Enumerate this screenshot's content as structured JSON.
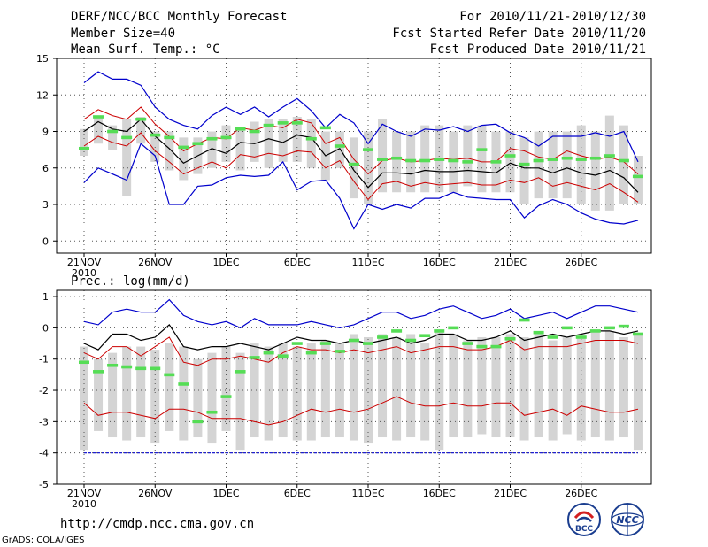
{
  "header": {
    "left1": "DERF/NCC/BCC Monthly Forecast",
    "left2": "Member Size=40",
    "left3": "Mean Surf. Temp.: °C",
    "right1": "For 2010/11/21-2010/12/30",
    "right2": "Fcst Started Refer Date 2010/11/20",
    "right3": "Fcst Produced Date 2010/11/21"
  },
  "footer": {
    "url": "http://cmdp.ncc.cma.gov.cn",
    "credit": "GrADS: COLA/IGES",
    "logo1": "BCC",
    "logo2": "NCC"
  },
  "colors": {
    "ensemble_mean": "#000000",
    "std_band": "#cc0000",
    "minmax": "#0000cc",
    "obs_marker": "#55dd55",
    "box": "#d4d4d4"
  },
  "chart_data": [
    {
      "type": "box-ensemble",
      "title": "Mean Surf. Temp.: °C",
      "xlabel": "",
      "ylabel": "",
      "x_tick_labels": [
        "21NOV",
        "26NOV",
        "1DEC",
        "6DEC",
        "11DEC",
        "16DEC",
        "21DEC",
        "26DEC"
      ],
      "x_tick_sublabel": "2010",
      "ylim": [
        -1,
        15
      ],
      "y_ticks": [
        0,
        3,
        6,
        9,
        12,
        15
      ],
      "days": 40,
      "series": [
        {
          "name": "max",
          "values": [
            13.0,
            13.9,
            13.3,
            13.3,
            12.8,
            11.0,
            10.0,
            9.5,
            9.2,
            10.3,
            11.0,
            10.4,
            11.0,
            10.2,
            11.0,
            11.7,
            10.7,
            9.3,
            10.4,
            9.7,
            8.0,
            9.6,
            9.0,
            8.6,
            9.2,
            9.1,
            9.4,
            9.0,
            9.5,
            9.6,
            8.9,
            8.5,
            7.8,
            8.6,
            8.6,
            8.6,
            8.9,
            8.6,
            9.0,
            6.5
          ]
        },
        {
          "name": "mean_plus_std",
          "values": [
            10.0,
            10.8,
            10.3,
            10.0,
            11.0,
            9.6,
            8.6,
            7.4,
            8.0,
            8.5,
            8.4,
            9.3,
            9.1,
            9.5,
            9.3,
            10.0,
            9.7,
            8.0,
            8.5,
            6.7,
            5.5,
            6.6,
            6.8,
            6.5,
            6.6,
            6.8,
            6.7,
            6.8,
            6.5,
            6.5,
            7.6,
            7.4,
            6.9,
            6.7,
            7.4,
            7.0,
            6.7,
            6.9,
            6.5,
            5.5
          ]
        },
        {
          "name": "mean",
          "values": [
            9.0,
            9.8,
            9.2,
            9.0,
            10.0,
            8.6,
            7.6,
            6.4,
            7.0,
            7.6,
            7.2,
            8.1,
            8.0,
            8.4,
            8.1,
            8.7,
            8.5,
            7.0,
            7.6,
            5.8,
            4.4,
            5.6,
            5.6,
            5.5,
            5.8,
            5.7,
            5.7,
            5.8,
            5.7,
            5.6,
            6.4,
            6.0,
            6.0,
            5.6,
            6.0,
            5.6,
            5.4,
            5.8,
            5.2,
            4.0
          ]
        },
        {
          "name": "mean_minus_std",
          "values": [
            7.8,
            8.6,
            8.1,
            7.8,
            8.9,
            7.4,
            6.5,
            5.5,
            6.0,
            6.5,
            6.0,
            7.1,
            6.9,
            7.2,
            7.0,
            7.4,
            7.3,
            6.0,
            6.6,
            4.9,
            3.4,
            4.7,
            4.9,
            4.5,
            4.8,
            4.6,
            4.7,
            4.8,
            4.6,
            4.6,
            5.0,
            4.8,
            5.2,
            4.5,
            4.8,
            4.5,
            4.2,
            4.7,
            4.0,
            3.2
          ]
        },
        {
          "name": "min",
          "values": [
            4.8,
            6.0,
            5.5,
            5.0,
            8.0,
            7.0,
            3.0,
            3.0,
            4.5,
            4.6,
            5.2,
            5.4,
            5.3,
            5.4,
            6.5,
            4.2,
            4.9,
            5.0,
            3.5,
            1.0,
            3.0,
            2.6,
            3.0,
            2.7,
            3.5,
            3.5,
            4.0,
            3.6,
            3.5,
            3.4,
            3.4,
            1.9,
            2.9,
            3.4,
            3.0,
            2.3,
            1.8,
            1.5,
            1.4,
            1.7
          ]
        },
        {
          "name": "box_top",
          "values": [
            9.2,
            10.2,
            9.5,
            10.0,
            10.2,
            9.0,
            9.0,
            8.5,
            8.5,
            9.0,
            9.5,
            9.2,
            9.8,
            10.0,
            10.0,
            10.2,
            10.0,
            9.0,
            9.0,
            8.5,
            9.0,
            10.0,
            9.0,
            9.0,
            9.5,
            9.5,
            9.0,
            9.5,
            9.5,
            9.0,
            9.0,
            8.5,
            9.0,
            9.0,
            9.0,
            9.5,
            9.0,
            10.3,
            9.5,
            7.0
          ]
        },
        {
          "name": "box_bottom",
          "values": [
            7.0,
            8.0,
            7.5,
            3.7,
            8.0,
            6.5,
            5.8,
            5.0,
            5.5,
            6.0,
            6.5,
            5.8,
            6.5,
            6.0,
            6.5,
            6.5,
            6.0,
            5.0,
            6.0,
            3.5,
            3.0,
            4.0,
            4.0,
            4.0,
            4.0,
            4.0,
            4.0,
            4.5,
            4.0,
            4.0,
            4.0,
            3.0,
            3.5,
            3.5,
            3.5,
            3.0,
            2.5,
            2.5,
            3.0,
            3.0
          ]
        },
        {
          "name": "observed",
          "values": [
            7.6,
            10.2,
            9.0,
            8.5,
            10.0,
            8.7,
            8.5,
            7.7,
            8.0,
            8.4,
            8.5,
            9.2,
            9.0,
            9.5,
            9.7,
            9.7,
            8.4,
            9.3,
            7.8,
            6.3,
            7.5,
            6.7,
            6.8,
            6.6,
            6.6,
            6.7,
            6.6,
            6.5,
            7.5,
            6.5,
            7.0,
            6.3,
            6.6,
            6.7,
            6.8,
            6.7,
            6.8,
            7.0,
            6.6,
            5.3
          ]
        }
      ]
    },
    {
      "type": "box-ensemble",
      "title": "Prec.: log(mm/d)",
      "xlabel": "",
      "ylabel": "",
      "x_tick_labels": [
        "21NOV",
        "26NOV",
        "1DEC",
        "6DEC",
        "11DEC",
        "16DEC",
        "21DEC",
        "26DEC"
      ],
      "x_tick_sublabel": "2010",
      "ylim": [
        -5,
        1.2
      ],
      "y_ticks": [
        -5,
        -4,
        -3,
        -2,
        -1,
        0,
        1
      ],
      "days": 40,
      "series": [
        {
          "name": "max",
          "values": [
            0.2,
            0.1,
            0.5,
            0.6,
            0.5,
            0.5,
            0.9,
            0.4,
            0.2,
            0.1,
            0.2,
            0.0,
            0.3,
            0.1,
            0.1,
            0.1,
            0.2,
            0.1,
            0.0,
            0.1,
            0.3,
            0.5,
            0.5,
            0.3,
            0.4,
            0.6,
            0.7,
            0.5,
            0.3,
            0.4,
            0.6,
            0.3,
            0.4,
            0.5,
            0.3,
            0.5,
            0.7,
            0.7,
            0.6,
            0.5
          ]
        },
        {
          "name": "mean",
          "values": [
            -0.5,
            -0.7,
            -0.2,
            -0.2,
            -0.4,
            -0.3,
            0.1,
            -0.6,
            -0.7,
            -0.6,
            -0.6,
            -0.5,
            -0.6,
            -0.7,
            -0.5,
            -0.3,
            -0.4,
            -0.4,
            -0.5,
            -0.4,
            -0.5,
            -0.4,
            -0.3,
            -0.5,
            -0.4,
            -0.2,
            -0.2,
            -0.4,
            -0.4,
            -0.3,
            -0.1,
            -0.4,
            -0.3,
            -0.2,
            -0.3,
            -0.2,
            -0.1,
            -0.1,
            -0.2,
            -0.1
          ]
        },
        {
          "name": "mean_minus_std",
          "values": [
            -0.8,
            -1.0,
            -0.6,
            -0.6,
            -0.9,
            -0.6,
            -0.3,
            -1.1,
            -1.2,
            -1.0,
            -1.0,
            -0.9,
            -1.0,
            -1.1,
            -0.8,
            -0.6,
            -0.7,
            -0.7,
            -0.8,
            -0.7,
            -0.8,
            -0.7,
            -0.6,
            -0.8,
            -0.7,
            -0.6,
            -0.6,
            -0.7,
            -0.7,
            -0.6,
            -0.4,
            -0.7,
            -0.6,
            -0.6,
            -0.6,
            -0.5,
            -0.4,
            -0.4,
            -0.4,
            -0.5
          ]
        },
        {
          "name": "low",
          "values": [
            -2.4,
            -2.8,
            -2.7,
            -2.7,
            -2.8,
            -2.9,
            -2.6,
            -2.6,
            -2.7,
            -2.9,
            -2.9,
            -2.9,
            -3.0,
            -3.1,
            -3.0,
            -2.8,
            -2.6,
            -2.7,
            -2.6,
            -2.7,
            -2.6,
            -2.4,
            -2.2,
            -2.4,
            -2.5,
            -2.5,
            -2.4,
            -2.5,
            -2.5,
            -2.4,
            -2.4,
            -2.8,
            -2.7,
            -2.6,
            -2.8,
            -2.5,
            -2.6,
            -2.7,
            -2.7,
            -2.6
          ]
        },
        {
          "name": "min",
          "values": [
            -4.0,
            -4.0,
            -4.0,
            -4.0,
            -4.0,
            -4.0,
            -4.0,
            -4.0,
            -4.0,
            -4.0,
            -4.0,
            -4.0,
            -4.0,
            -4.0,
            -4.0,
            -4.0,
            -4.0,
            -4.0,
            -4.0,
            -4.0,
            -4.0,
            -4.0,
            -4.0,
            -4.0,
            -4.0,
            -4.0,
            -4.0,
            -4.0,
            -4.0,
            -4.0,
            -4.0,
            -4.0,
            -4.0,
            -4.0,
            -4.0,
            -4.0,
            -4.0,
            -4.0,
            -4.0,
            -4.0
          ]
        },
        {
          "name": "box_top",
          "values": [
            -0.6,
            -1.0,
            -0.8,
            -0.6,
            -0.6,
            -0.7,
            -0.5,
            -0.6,
            -1.0,
            -0.8,
            -0.6,
            -0.8,
            -0.5,
            -0.6,
            -0.5,
            -0.6,
            -0.5,
            -0.4,
            -0.5,
            -0.2,
            -0.3,
            -0.2,
            -0.3,
            -0.2,
            -0.5,
            -0.1,
            -0.2,
            -0.4,
            -0.3,
            -0.3,
            -0.2,
            -0.3,
            -0.2,
            -0.4,
            -0.3,
            -0.3,
            -0.1,
            -0.1,
            -0.3,
            -0.2
          ]
        },
        {
          "name": "box_bottom",
          "values": [
            -3.9,
            -3.3,
            -3.5,
            -3.6,
            -3.5,
            -3.7,
            -3.3,
            -3.6,
            -3.5,
            -3.7,
            -3.3,
            -3.9,
            -3.5,
            -3.6,
            -3.5,
            -3.6,
            -3.6,
            -3.5,
            -3.5,
            -3.6,
            -3.7,
            -3.5,
            -3.6,
            -3.5,
            -3.6,
            -3.9,
            -3.5,
            -3.5,
            -3.4,
            -3.5,
            -3.5,
            -3.6,
            -3.5,
            -3.6,
            -3.4,
            -3.6,
            -3.5,
            -3.6,
            -3.5,
            -3.9
          ]
        },
        {
          "name": "observed",
          "values": [
            -1.1,
            -1.4,
            -1.2,
            -1.25,
            -1.3,
            -1.3,
            -1.5,
            -1.8,
            -3.0,
            -2.7,
            -2.2,
            -1.4,
            -0.95,
            -0.8,
            -0.9,
            -0.5,
            -0.8,
            -0.5,
            -0.75,
            -0.4,
            -0.5,
            -0.3,
            -0.1,
            -0.4,
            -0.25,
            -0.1,
            0.0,
            -0.5,
            -0.6,
            -0.6,
            -0.35,
            0.25,
            -0.15,
            -0.3,
            0.0,
            -0.3,
            -0.1,
            0.0,
            0.05,
            -0.2
          ]
        }
      ]
    }
  ]
}
